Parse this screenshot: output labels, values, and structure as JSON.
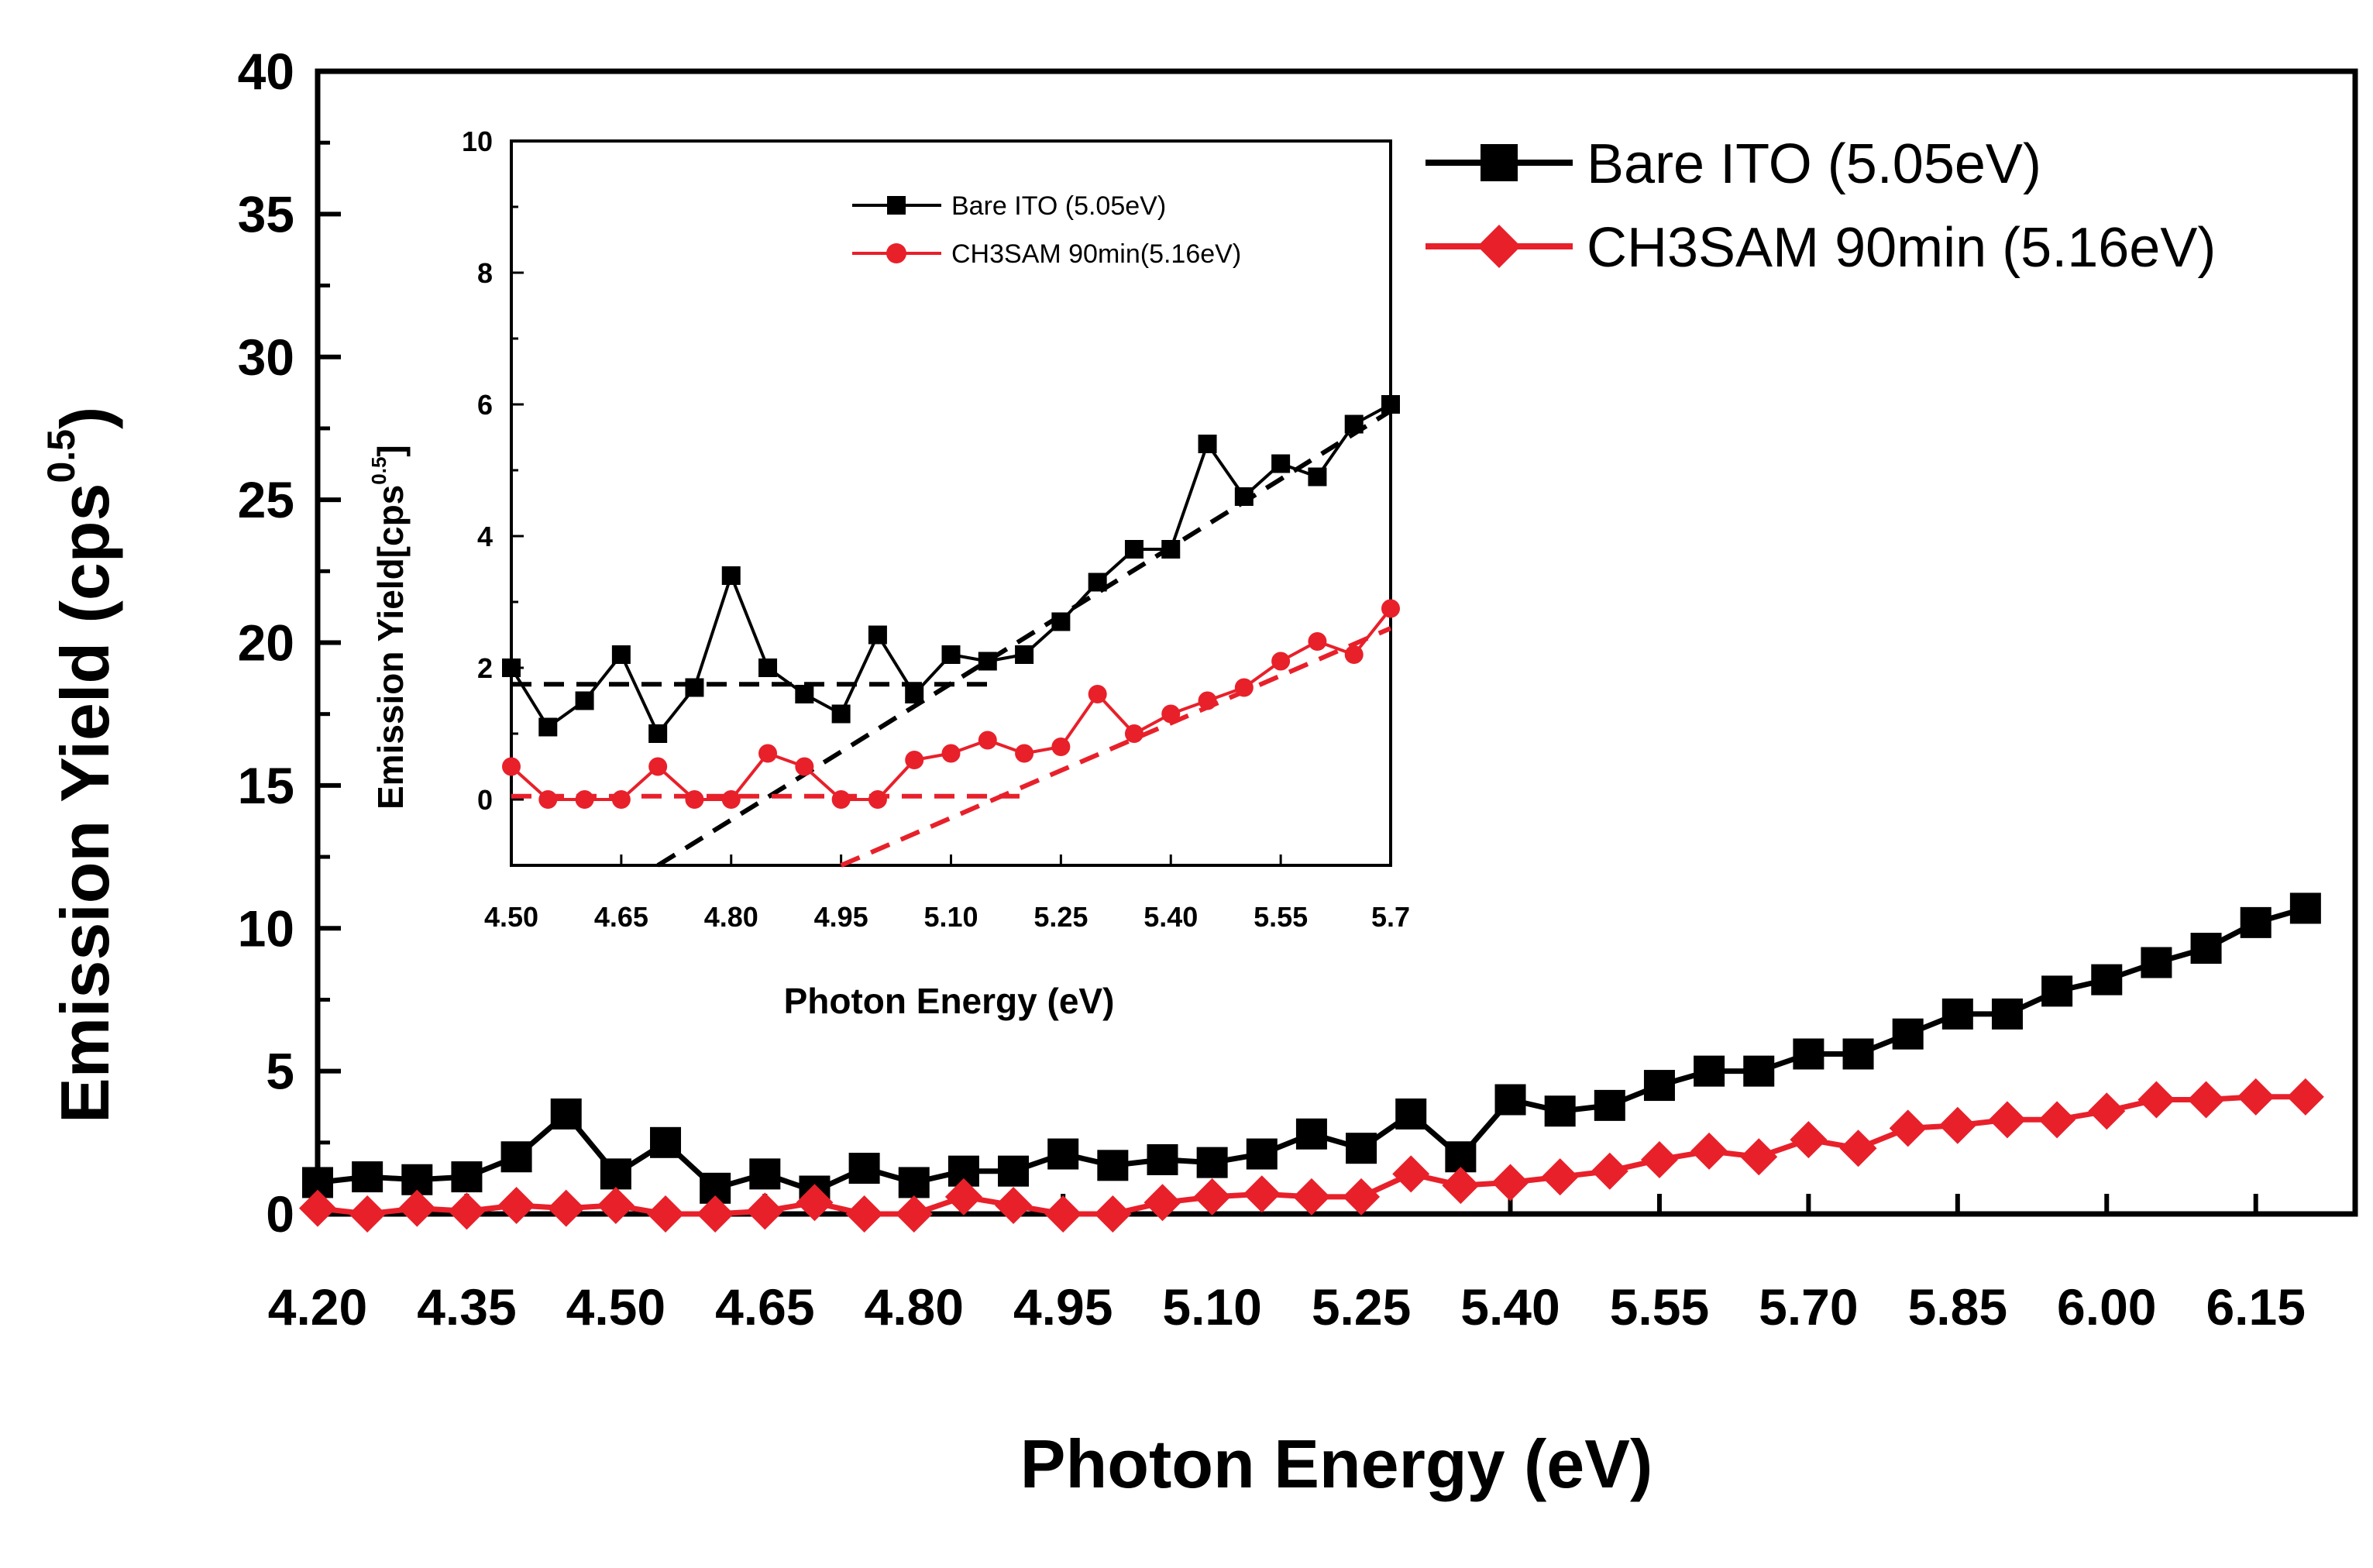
{
  "chart_data": [
    {
      "type": "line",
      "xlabel": "Photon Energy (eV)",
      "ylabel_main": "Emission Yield (cps",
      "ylabel_sup": "0.5",
      "ylabel_close": ")",
      "xlim": [
        4.2,
        6.25
      ],
      "ylim": [
        0,
        40
      ],
      "xticks": [
        "4.20",
        "4.35",
        "4.50",
        "4.65",
        "4.80",
        "4.95",
        "5.10",
        "5.25",
        "5.40",
        "5.55",
        "5.70",
        "5.85",
        "6.00",
        "6.15"
      ],
      "yticks": [
        "0",
        "5",
        "10",
        "15",
        "20",
        "25",
        "30",
        "35",
        "40"
      ],
      "legend_position": "top-right",
      "series": [
        {
          "name": "Bare ITO (5.05eV)",
          "color": "#000000",
          "marker": "square",
          "x": [
            4.2,
            4.25,
            4.3,
            4.35,
            4.4,
            4.45,
            4.5,
            4.55,
            4.6,
            4.65,
            4.7,
            4.75,
            4.8,
            4.85,
            4.9,
            4.95,
            5.0,
            5.05,
            5.1,
            5.15,
            5.2,
            5.25,
            5.3,
            5.35,
            5.4,
            5.45,
            5.5,
            5.55,
            5.6,
            5.65,
            5.7,
            5.75,
            5.8,
            5.85,
            5.9,
            5.95,
            6.0,
            6.05,
            6.1,
            6.15,
            6.2
          ],
          "y": [
            1.1,
            1.3,
            1.2,
            1.3,
            2.0,
            3.5,
            1.4,
            2.5,
            0.9,
            1.4,
            0.8,
            1.6,
            1.1,
            1.5,
            1.5,
            2.1,
            1.7,
            1.9,
            1.8,
            2.1,
            2.8,
            2.3,
            3.5,
            2.0,
            4.0,
            3.6,
            3.8,
            4.5,
            5.0,
            5.0,
            5.6,
            5.6,
            6.3,
            7.0,
            7.0,
            7.8,
            8.2,
            8.8,
            9.3,
            10.2,
            10.7
          ]
        },
        {
          "name": "CH3SAM 90min (5.16eV)",
          "color": "#e8202a",
          "marker": "diamond",
          "x": [
            4.2,
            4.25,
            4.3,
            4.35,
            4.4,
            4.45,
            4.5,
            4.55,
            4.6,
            4.65,
            4.7,
            4.75,
            4.8,
            4.85,
            4.9,
            4.95,
            5.0,
            5.05,
            5.1,
            5.15,
            5.2,
            5.25,
            5.3,
            5.35,
            5.4,
            5.45,
            5.5,
            5.55,
            5.6,
            5.65,
            5.7,
            5.75,
            5.8,
            5.85,
            5.9,
            5.95,
            6.0,
            6.05,
            6.1,
            6.15,
            6.2
          ],
          "y": [
            0.2,
            0.0,
            0.2,
            0.1,
            0.3,
            0.2,
            0.3,
            0.0,
            0.0,
            0.1,
            0.4,
            0.0,
            0.0,
            0.6,
            0.3,
            0.0,
            0.0,
            0.4,
            0.6,
            0.7,
            0.6,
            0.6,
            1.4,
            1.0,
            1.1,
            1.3,
            1.5,
            1.9,
            2.2,
            2.0,
            2.6,
            2.3,
            3.0,
            3.1,
            3.3,
            3.3,
            3.6,
            4.0,
            4.0,
            4.1,
            4.1
          ]
        }
      ]
    },
    {
      "type": "line",
      "title": "inset",
      "xlabel": "Photon Energy (eV)",
      "ylabel_main": "Emission Yield[cps",
      "ylabel_sup": "0.5",
      "ylabel_close": "]",
      "xlim": [
        4.5,
        5.7
      ],
      "ylim": [
        -1,
        10
      ],
      "xticks": [
        "4.50",
        "4.65",
        "4.80",
        "4.95",
        "5.10",
        "5.25",
        "5.40",
        "5.55",
        "5.7"
      ],
      "xtick_values": [
        4.5,
        4.65,
        4.8,
        4.95,
        5.1,
        5.25,
        5.4,
        5.55,
        5.7
      ],
      "yticks": [
        "0",
        "2",
        "4",
        "6",
        "8",
        "10"
      ],
      "legend_position": "top-left",
      "series": [
        {
          "name": "Bare ITO (5.05eV)",
          "color": "#000000",
          "marker": "square",
          "x": [
            4.5,
            4.55,
            4.6,
            4.65,
            4.7,
            4.75,
            4.8,
            4.85,
            4.9,
            4.95,
            5.0,
            5.05,
            5.1,
            5.15,
            5.2,
            5.25,
            5.3,
            5.35,
            5.4,
            5.45,
            5.5,
            5.55,
            5.6,
            5.65,
            5.7
          ],
          "y": [
            2.0,
            1.1,
            1.5,
            2.2,
            1.0,
            1.7,
            3.4,
            2.0,
            1.6,
            1.3,
            2.5,
            1.6,
            2.2,
            2.1,
            2.2,
            2.7,
            3.3,
            3.8,
            3.8,
            5.4,
            4.6,
            5.1,
            4.9,
            5.7,
            6.0
          ]
        },
        {
          "name": "CH3SAM 90min(5.16eV)",
          "color": "#e8202a",
          "marker": "circle",
          "x": [
            4.5,
            4.55,
            4.6,
            4.65,
            4.7,
            4.75,
            4.8,
            4.85,
            4.9,
            4.95,
            5.0,
            5.05,
            5.1,
            5.15,
            5.2,
            5.25,
            5.3,
            5.35,
            5.4,
            5.45,
            5.5,
            5.55,
            5.6,
            5.65,
            5.7
          ],
          "y": [
            0.5,
            0.0,
            0.0,
            0.0,
            0.5,
            0.0,
            0.0,
            0.7,
            0.5,
            0.0,
            0.0,
            0.6,
            0.7,
            0.9,
            0.7,
            0.8,
            1.6,
            1.0,
            1.3,
            1.5,
            1.7,
            2.1,
            2.4,
            2.2,
            2.9
          ]
        }
      ],
      "fit_lines": [
        {
          "name": "baseline-bare",
          "color": "#000000",
          "x": [
            4.5,
            5.15
          ],
          "y": [
            1.75,
            1.75
          ]
        },
        {
          "name": "slope-bare",
          "color": "#000000",
          "x": [
            4.7,
            5.7
          ],
          "y": [
            -1.0,
            5.9
          ]
        },
        {
          "name": "baseline-sam",
          "color": "#e8202a",
          "x": [
            4.5,
            5.2
          ],
          "y": [
            0.05,
            0.05
          ]
        },
        {
          "name": "slope-sam",
          "color": "#e8202a",
          "x": [
            4.95,
            5.7
          ],
          "y": [
            -1.0,
            2.6
          ]
        }
      ]
    }
  ]
}
